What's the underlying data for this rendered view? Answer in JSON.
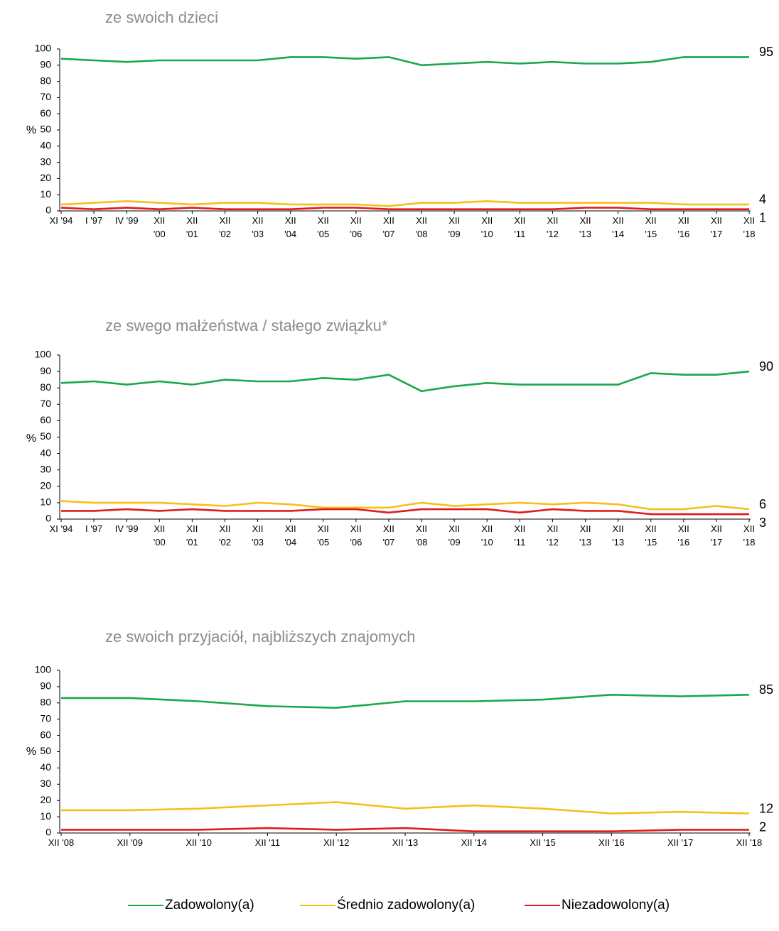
{
  "colors": {
    "zadowolony": "#1aa84a",
    "srednio": "#f8bf17",
    "niezadowolony": "#e01b1b",
    "axis": "#000000",
    "title": "#8c8c8c"
  },
  "legend": [
    {
      "label": "Zadowolony(a)",
      "color": "#1aa84a"
    },
    {
      "label": "Średnio zadowolony(a)",
      "color": "#f8bf17"
    },
    {
      "label": "Niezadowolony(a)",
      "color": "#e01b1b"
    }
  ],
  "chart_data": [
    {
      "type": "line",
      "title": "ze swoich dzieci",
      "ylabel": "%",
      "ylim": [
        0,
        100
      ],
      "yticks": [
        0,
        10,
        20,
        30,
        40,
        50,
        60,
        70,
        80,
        90,
        100
      ],
      "grid": false,
      "legend_position": "bottom",
      "categories": [
        [
          "XI '94"
        ],
        [
          "I '97"
        ],
        [
          "IV '99"
        ],
        [
          "XII",
          "'00"
        ],
        [
          "XII",
          "'01"
        ],
        [
          "XII",
          "'02"
        ],
        [
          "XII",
          "'03"
        ],
        [
          "XII",
          "'04"
        ],
        [
          "XII",
          "'05"
        ],
        [
          "XII",
          "'06"
        ],
        [
          "XII",
          "'07"
        ],
        [
          "XII",
          "'08"
        ],
        [
          "XII",
          "'09"
        ],
        [
          "XII",
          "'10"
        ],
        [
          "XII",
          "'11"
        ],
        [
          "XII",
          "'12"
        ],
        [
          "XII",
          "'13"
        ],
        [
          "XII",
          "'14"
        ],
        [
          "XII",
          "'15"
        ],
        [
          "XII",
          "'16"
        ],
        [
          "XII",
          "'17"
        ],
        [
          "XII",
          "'18"
        ]
      ],
      "series": [
        {
          "name": "Zadowolony(a)",
          "values": [
            94,
            93,
            92,
            93,
            93,
            93,
            93,
            95,
            95,
            94,
            95,
            90,
            91,
            92,
            91,
            92,
            91,
            91,
            92,
            95,
            95,
            95
          ],
          "end_label": "95"
        },
        {
          "name": "Średnio zadowolony(a)",
          "values": [
            4,
            5,
            6,
            5,
            4,
            5,
            5,
            4,
            4,
            4,
            3,
            5,
            5,
            6,
            5,
            5,
            5,
            5,
            5,
            4,
            4,
            4
          ],
          "end_label": "4"
        },
        {
          "name": "Niezadowolony(a)",
          "values": [
            2,
            1,
            2,
            1,
            2,
            1,
            1,
            1,
            2,
            2,
            1,
            1,
            1,
            1,
            1,
            1,
            2,
            2,
            1,
            1,
            1,
            1
          ],
          "end_label": "1"
        }
      ]
    },
    {
      "type": "line",
      "title": "ze swego małżeństwa / stałego związku*",
      "ylabel": "%",
      "ylim": [
        0,
        100
      ],
      "yticks": [
        0,
        10,
        20,
        30,
        40,
        50,
        60,
        70,
        80,
        90,
        100
      ],
      "grid": false,
      "legend_position": "bottom",
      "categories": [
        [
          "XI '94"
        ],
        [
          "I '97"
        ],
        [
          "IV '99"
        ],
        [
          "XII",
          "'00"
        ],
        [
          "XII",
          "'01"
        ],
        [
          "XII",
          "'02"
        ],
        [
          "XII",
          "'03"
        ],
        [
          "XII",
          "'04"
        ],
        [
          "XII",
          "'05"
        ],
        [
          "XII",
          "'06"
        ],
        [
          "XII",
          "'07"
        ],
        [
          "XII",
          "'08"
        ],
        [
          "XII",
          "'09"
        ],
        [
          "XII",
          "'10"
        ],
        [
          "XII",
          "'11"
        ],
        [
          "XII",
          "'12"
        ],
        [
          "XII",
          "'13"
        ],
        [
          "XII",
          "'13"
        ],
        [
          "XII",
          "'15"
        ],
        [
          "XII",
          "'16"
        ],
        [
          "XII",
          "'17"
        ],
        [
          "XII",
          "'18"
        ]
      ],
      "series": [
        {
          "name": "Zadowolony(a)",
          "values": [
            83,
            84,
            82,
            84,
            82,
            85,
            84,
            84,
            86,
            85,
            88,
            78,
            81,
            83,
            82,
            82,
            82,
            82,
            89,
            88,
            88,
            90
          ],
          "end_label": "90"
        },
        {
          "name": "Średnio zadowolony(a)",
          "values": [
            11,
            10,
            10,
            10,
            9,
            8,
            10,
            9,
            7,
            7,
            7,
            10,
            8,
            9,
            10,
            9,
            10,
            9,
            6,
            6,
            8,
            6
          ],
          "end_label": "6"
        },
        {
          "name": "Niezadowolony(a)",
          "values": [
            5,
            5,
            6,
            5,
            6,
            5,
            5,
            5,
            6,
            6,
            4,
            6,
            6,
            6,
            4,
            6,
            5,
            5,
            3,
            3,
            3,
            3
          ],
          "end_label": "3"
        }
      ]
    },
    {
      "type": "line",
      "title": "ze swoich przyjaciół, najbliższych znajomych",
      "ylabel": "%",
      "ylim": [
        0,
        100
      ],
      "yticks": [
        0,
        10,
        20,
        30,
        40,
        50,
        60,
        70,
        80,
        90,
        100
      ],
      "grid": false,
      "legend_position": "bottom",
      "categories": [
        [
          "XII '08"
        ],
        [
          "XII '09"
        ],
        [
          "XII '10"
        ],
        [
          "XII '11"
        ],
        [
          "XII '12"
        ],
        [
          "XII '13"
        ],
        [
          "XII '14"
        ],
        [
          "XII '15"
        ],
        [
          "XII '16"
        ],
        [
          "XII '17"
        ],
        [
          "XII '18"
        ]
      ],
      "series": [
        {
          "name": "Zadowolony(a)",
          "values": [
            83,
            83,
            81,
            78,
            77,
            81,
            81,
            82,
            85,
            84,
            85
          ],
          "end_label": "85"
        },
        {
          "name": "Średnio zadowolony(a)",
          "values": [
            14,
            14,
            15,
            17,
            19,
            15,
            17,
            15,
            12,
            13,
            12
          ],
          "end_label": "12"
        },
        {
          "name": "Niezadowolony(a)",
          "values": [
            2,
            2,
            2,
            3,
            2,
            3,
            1,
            1,
            1,
            2,
            2
          ],
          "end_label": "2"
        }
      ]
    }
  ]
}
